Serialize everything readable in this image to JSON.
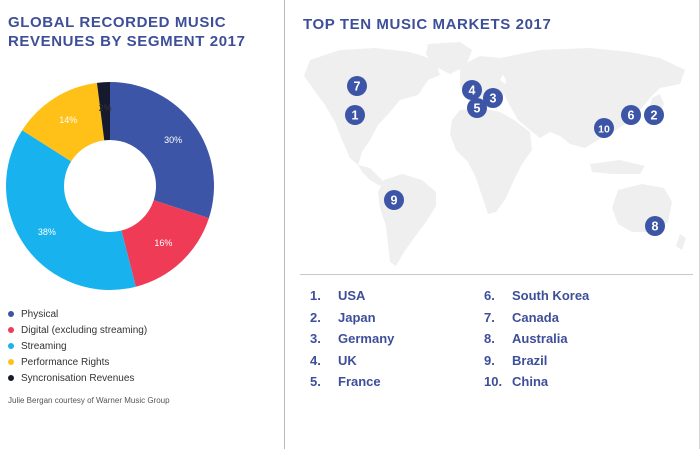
{
  "left_panel": {
    "title_line1": "GLOBAL RECORDED MUSIC",
    "title_line2": "REVENUES BY SEGMENT 2017",
    "credit": "Julie Bergan courtesy of Warner Music Group"
  },
  "right_panel": {
    "title": "TOP TEN MUSIC MARKETS 2017"
  },
  "chart_data": {
    "type": "pie",
    "donut": true,
    "segments": [
      {
        "name": "Physical",
        "value": 30,
        "label": "30%",
        "color": "#3d55a6"
      },
      {
        "name": "Digital (excluding streaming)",
        "value": 16,
        "label": "16%",
        "color": "#ef3b55"
      },
      {
        "name": "Streaming",
        "value": 38,
        "label": "38%",
        "color": "#18b2ef"
      },
      {
        "name": "Performance Rights",
        "value": 14,
        "label": "14%",
        "color": "#ffc118"
      },
      {
        "name": "Syncronisation Revenues",
        "value": 2,
        "label": "2%",
        "color": "#161a2e"
      }
    ],
    "legend_position": "bottom-left"
  },
  "markets": [
    {
      "num": "1.",
      "name": "USA"
    },
    {
      "num": "2.",
      "name": "Japan"
    },
    {
      "num": "3.",
      "name": "Germany"
    },
    {
      "num": "4.",
      "name": "UK"
    },
    {
      "num": "5.",
      "name": "France"
    },
    {
      "num": "6.",
      "name": "South Korea"
    },
    {
      "num": "7.",
      "name": "Canada"
    },
    {
      "num": "8.",
      "name": "Australia"
    },
    {
      "num": "9.",
      "name": "Brazil"
    },
    {
      "num": "10.",
      "name": "China"
    }
  ],
  "map_markers": [
    "1",
    "2",
    "3",
    "4",
    "5",
    "6",
    "7",
    "8",
    "9",
    "10"
  ],
  "colors": {
    "title": "#3e4f9a",
    "marker": "#3d55a6",
    "land": "#efefef"
  }
}
